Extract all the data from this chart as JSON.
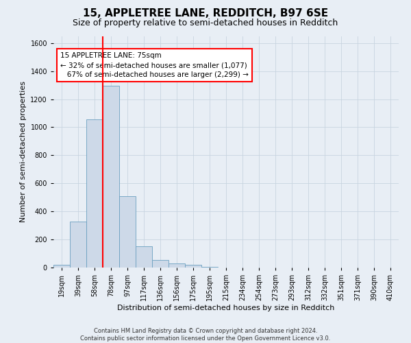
{
  "title": "15, APPLETREE LANE, REDDITCH, B97 6SE",
  "subtitle": "Size of property relative to semi-detached houses in Redditch",
  "xlabel": "Distribution of semi-detached houses by size in Redditch",
  "ylabel": "Number of semi-detached properties",
  "footer_line1": "Contains HM Land Registry data © Crown copyright and database right 2024.",
  "footer_line2": "Contains public sector information licensed under the Open Government Licence v3.0.",
  "categories": [
    "19sqm",
    "39sqm",
    "58sqm",
    "78sqm",
    "97sqm",
    "117sqm",
    "136sqm",
    "156sqm",
    "175sqm",
    "195sqm",
    "215sqm",
    "234sqm",
    "254sqm",
    "273sqm",
    "293sqm",
    "312sqm",
    "332sqm",
    "351sqm",
    "371sqm",
    "390sqm",
    "410sqm"
  ],
  "values": [
    20,
    330,
    1055,
    1295,
    510,
    150,
    55,
    30,
    20,
    5,
    0,
    0,
    0,
    0,
    0,
    0,
    0,
    0,
    0,
    0,
    0
  ],
  "bar_color": "#cdd9e8",
  "bar_edge_color": "#6a9fc0",
  "vline_color": "red",
  "annotation_line1": "15 APPLETREE LANE: 75sqm",
  "annotation_line2": "← 32% of semi-detached houses are smaller (1,077)",
  "annotation_line3": "   67% of semi-detached houses are larger (2,299) →",
  "annotation_box_color": "white",
  "annotation_box_edge_color": "red",
  "ylim": [
    0,
    1650
  ],
  "yticks": [
    0,
    200,
    400,
    600,
    800,
    1000,
    1200,
    1400,
    1600
  ],
  "grid_color": "#c8d4e0",
  "bg_color": "#e8eef5",
  "title_fontsize": 11,
  "subtitle_fontsize": 9,
  "axis_label_fontsize": 8,
  "tick_fontsize": 7,
  "annotation_fontsize": 7.5
}
